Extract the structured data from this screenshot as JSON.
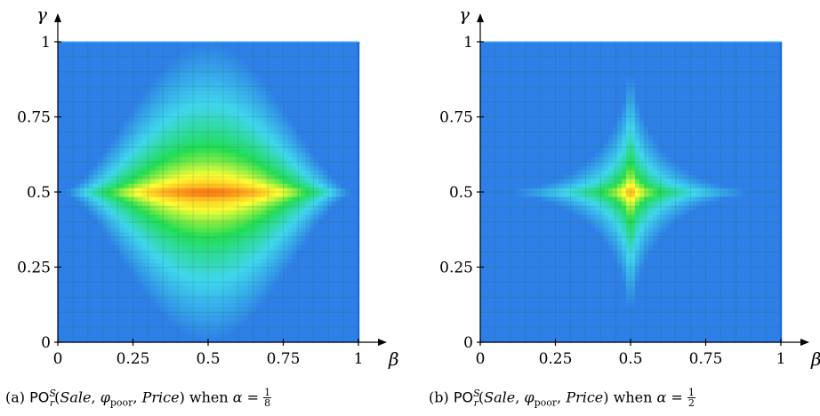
{
  "panels": [
    {
      "caption": {
        "prefix": "(a) ",
        "po": "PO",
        "po_sup": "S",
        "po_sub": "r",
        "args": "(",
        "sale": "Sale",
        "comma1": ", ",
        "phi": "φ",
        "phi_sub": "poor",
        "comma2": ", ",
        "price": "Price",
        "close": ")",
        "when": " when ",
        "alpha": "α",
        "eq": " = ",
        "frac_num": "1",
        "frac_den": "8"
      }
    },
    {
      "caption": {
        "prefix": "(b) ",
        "po": "PO",
        "po_sup": "S",
        "po_sub": "r",
        "args": "(",
        "sale": "Sale",
        "comma1": ", ",
        "phi": "φ",
        "phi_sub": "poor",
        "comma2": ", ",
        "price": "Price",
        "close": ")",
        "when": " when ",
        "alpha": "α",
        "eq": " = ",
        "frac_num": "1",
        "frac_den": "2"
      }
    }
  ],
  "chart_data": [
    {
      "type": "heatmap",
      "xlabel": "β",
      "ylabel": "γ",
      "xlim": [
        0,
        1
      ],
      "ylim": [
        0,
        1
      ],
      "xticks": [
        "0",
        "0.25",
        "0.5",
        "0.75",
        "1"
      ],
      "yticks": [
        "0",
        "0.25",
        "0.5",
        "0.75",
        "1"
      ],
      "grid": true,
      "colormap": [
        "#2e7fe6",
        "#3fd6ee",
        "#22dd55",
        "#ffff33",
        "#ff9a1a",
        "#ee1111"
      ],
      "x_exponent": 2.0,
      "y_exponent": 0.5,
      "peak": [
        0.5,
        0.5
      ]
    },
    {
      "type": "heatmap",
      "xlabel": "β",
      "ylabel": "γ",
      "xlim": [
        0,
        1
      ],
      "ylim": [
        0,
        1
      ],
      "xticks": [
        "0",
        "0.25",
        "0.5",
        "0.75",
        "1"
      ],
      "yticks": [
        "0",
        "0.25",
        "0.5",
        "0.75",
        "1"
      ],
      "grid": true,
      "colormap": [
        "#2e7fe6",
        "#3fd6ee",
        "#22dd55",
        "#ffff33",
        "#ff9a1a",
        "#ee1111"
      ],
      "x_exponent": 0.5,
      "y_exponent": 0.5,
      "peak": [
        0.5,
        0.5
      ]
    }
  ]
}
